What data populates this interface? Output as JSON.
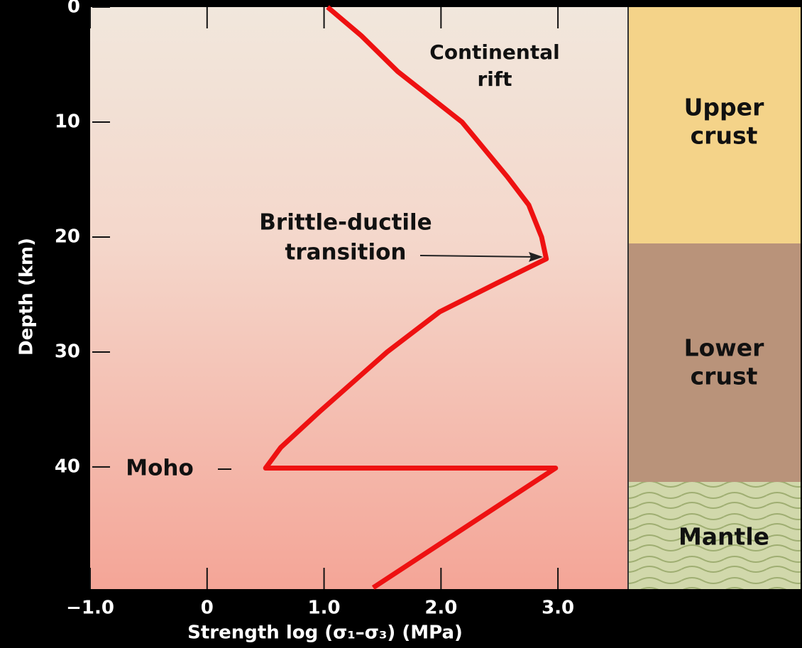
{
  "chart_data": {
    "type": "line",
    "x_label": "Strength log (σ₁–σ₃) (MPa)",
    "y_label": "Depth (km)",
    "x": [
      1.03,
      1.32,
      1.63,
      2.18,
      2.57,
      2.75,
      2.86,
      2.9,
      2.48,
      1.99,
      1.54,
      0.96,
      0.63,
      0.5,
      2.98,
      1.42
    ],
    "values": [
      0,
      2.5,
      5.6,
      10,
      14.8,
      17.2,
      20,
      21.9,
      24,
      26.5,
      30,
      35.2,
      38.3,
      40.1,
      40.1,
      50.5
    ],
    "color": "#ee1111",
    "xlim": [
      -1.0,
      3.6
    ],
    "ylim": [
      0,
      50.5
    ],
    "y_inverted": true,
    "xticks": [
      {
        "value": -1.0,
        "label": "−1.0"
      },
      0,
      {
        "value": 1.0,
        "label": "1.0"
      },
      {
        "value": 2.0,
        "label": "2.0"
      },
      {
        "value": 3.0,
        "label": "3.0"
      }
    ],
    "yticks": [
      0,
      10,
      20,
      30,
      40
    ],
    "annotations": [
      {
        "lines": [
          "Continental",
          "rift"
        ]
      },
      {
        "lines": [
          "Brittle-ductile",
          "transition"
        ]
      },
      {
        "lines": [
          "Moho"
        ]
      }
    ],
    "layers": [
      {
        "lines": [
          "Upper",
          "crust"
        ]
      },
      {
        "lines": [
          "Lower",
          "crust"
        ]
      },
      {
        "lines": [
          "Mantle"
        ]
      }
    ]
  }
}
